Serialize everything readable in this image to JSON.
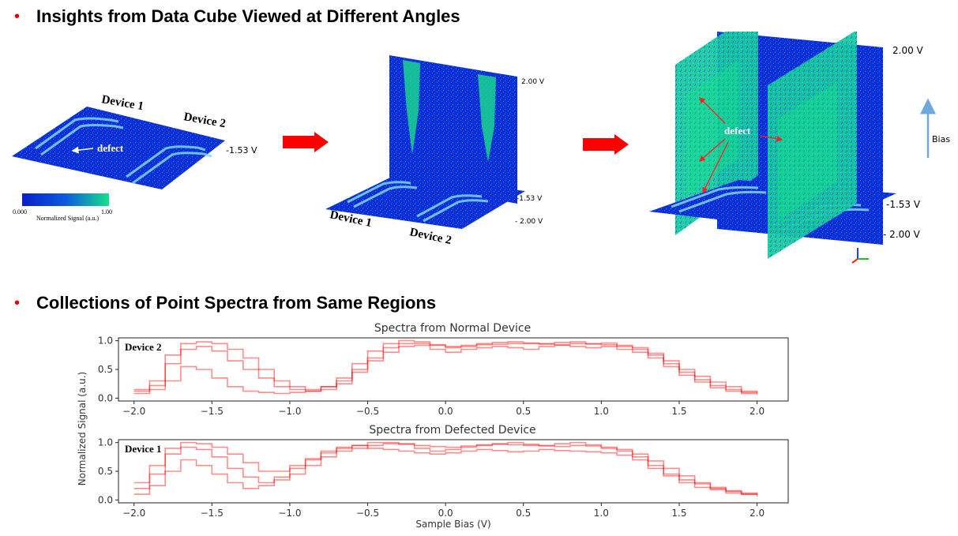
{
  "section1": {
    "bullet": "•",
    "title": "Insights from Data Cube Viewed at Different Angles"
  },
  "section2": {
    "bullet": "•",
    "title": "Collections of Point Spectra from Same Regions"
  },
  "colorbar": {
    "min": "0.000",
    "max": "1.00",
    "label": "Normalized Signal (a.u.)"
  },
  "cube1": {
    "device1": "Device 1",
    "device2": "Device 2",
    "defect": "defect",
    "bias": "-1.53 V"
  },
  "cube2": {
    "top_bias": "2.00 V",
    "mid_bias": "-1.53 V",
    "low_bias": "- 2.00 V",
    "device1": "Device 1",
    "device2": "Device 2"
  },
  "cube3": {
    "top_bias": "2.00 V",
    "mid_bias": "-1.53 V",
    "low_bias": "- 2.00 V",
    "defect": "defect",
    "axis_arrow": "Bias"
  },
  "colors": {
    "accent_red": "#e00000",
    "cube_blue": "#0b2fd6",
    "cube_green": "#19e08a",
    "arrow_blue": "#6fa8dc",
    "spectra_red": "#ff0000"
  },
  "chart_data": [
    {
      "type": "line",
      "title": "Spectra from Normal Device",
      "label": "Device 2",
      "xlabel": "",
      "ylabel": "Normalized Signal (a.u.)",
      "xlim": [
        -2.1,
        2.2
      ],
      "ylim": [
        -0.05,
        1.05
      ],
      "xticks": [
        "−2.0",
        "−1.5",
        "−1.0",
        "−0.5",
        "0.0",
        "0.5",
        "1.0",
        "1.5",
        "2.0"
      ],
      "yticks": [
        "0.0",
        "0.5",
        "1.0"
      ],
      "x": [
        -2.0,
        -1.9,
        -1.8,
        -1.7,
        -1.6,
        -1.5,
        -1.4,
        -1.3,
        -1.2,
        -1.1,
        -1.0,
        -0.9,
        -0.8,
        -0.7,
        -0.6,
        -0.5,
        -0.4,
        -0.3,
        -0.2,
        -0.1,
        0.0,
        0.1,
        0.2,
        0.3,
        0.4,
        0.5,
        0.6,
        0.7,
        0.8,
        0.9,
        1.0,
        1.1,
        1.2,
        1.3,
        1.4,
        1.5,
        1.6,
        1.7,
        1.8,
        1.9,
        2.0
      ],
      "series": [
        {
          "values": [
            0.12,
            0.22,
            0.6,
            0.85,
            0.9,
            0.82,
            0.65,
            0.5,
            0.35,
            0.2,
            0.15,
            0.12,
            0.15,
            0.25,
            0.45,
            0.7,
            0.88,
            0.95,
            0.95,
            0.93,
            0.9,
            0.92,
            0.93,
            0.94,
            0.95,
            0.95,
            0.94,
            0.93,
            0.95,
            0.94,
            0.93,
            0.9,
            0.85,
            0.75,
            0.6,
            0.45,
            0.32,
            0.22,
            0.15,
            0.1,
            0.08
          ]
        },
        {
          "values": [
            0.08,
            0.15,
            0.3,
            0.55,
            0.5,
            0.35,
            0.2,
            0.12,
            0.1,
            0.08,
            0.1,
            0.12,
            0.2,
            0.35,
            0.6,
            0.82,
            0.95,
            1.0,
            0.98,
            0.92,
            0.88,
            0.9,
            0.95,
            0.97,
            0.98,
            0.96,
            0.95,
            0.97,
            0.98,
            0.95,
            0.96,
            0.92,
            0.88,
            0.78,
            0.65,
            0.5,
            0.38,
            0.28,
            0.2,
            0.12,
            0.1
          ]
        },
        {
          "values": [
            0.15,
            0.3,
            0.75,
            0.95,
            0.98,
            0.95,
            0.85,
            0.7,
            0.5,
            0.3,
            0.2,
            0.15,
            0.2,
            0.3,
            0.5,
            0.65,
            0.8,
            0.9,
            0.92,
            0.85,
            0.8,
            0.85,
            0.88,
            0.9,
            0.88,
            0.85,
            0.9,
            0.92,
            0.9,
            0.88,
            0.9,
            0.85,
            0.8,
            0.7,
            0.55,
            0.4,
            0.28,
            0.18,
            0.12,
            0.08,
            0.06
          ]
        }
      ]
    },
    {
      "type": "line",
      "title": "Spectra from Defected Device",
      "label": "Device 1",
      "xlabel": "Sample Bias (V)",
      "ylabel": "Normalized Signal (a.u.)",
      "xlim": [
        -2.1,
        2.2
      ],
      "ylim": [
        -0.05,
        1.05
      ],
      "xticks": [
        "−2.0",
        "−1.5",
        "−1.0",
        "−0.5",
        "0.0",
        "0.5",
        "1.0",
        "1.5",
        "2.0"
      ],
      "yticks": [
        "0.0",
        "0.5",
        "1.0"
      ],
      "x": [
        -2.0,
        -1.9,
        -1.8,
        -1.7,
        -1.6,
        -1.5,
        -1.4,
        -1.3,
        -1.2,
        -1.1,
        -1.0,
        -0.9,
        -0.8,
        -0.7,
        -0.6,
        -0.5,
        -0.4,
        -0.3,
        -0.2,
        -0.1,
        0.0,
        0.1,
        0.2,
        0.3,
        0.4,
        0.5,
        0.6,
        0.7,
        0.8,
        0.9,
        1.0,
        1.1,
        1.2,
        1.3,
        1.4,
        1.5,
        1.6,
        1.7,
        1.8,
        1.9,
        2.0
      ],
      "series": [
        {
          "values": [
            0.2,
            0.45,
            0.8,
            0.92,
            0.88,
            0.75,
            0.55,
            0.4,
            0.3,
            0.35,
            0.45,
            0.6,
            0.75,
            0.85,
            0.9,
            0.95,
            0.98,
            0.97,
            0.95,
            0.93,
            0.92,
            0.94,
            0.96,
            0.97,
            0.96,
            0.95,
            0.94,
            0.93,
            0.95,
            0.94,
            0.9,
            0.85,
            0.75,
            0.6,
            0.45,
            0.35,
            0.28,
            0.2,
            0.15,
            0.12,
            0.1
          ]
        },
        {
          "values": [
            0.1,
            0.25,
            0.5,
            0.7,
            0.6,
            0.45,
            0.3,
            0.2,
            0.25,
            0.4,
            0.55,
            0.7,
            0.82,
            0.9,
            0.95,
            1.0,
            1.0,
            0.98,
            0.9,
            0.85,
            0.88,
            0.92,
            0.95,
            0.98,
            1.0,
            0.97,
            0.95,
            0.98,
            1.0,
            0.96,
            0.92,
            0.88,
            0.8,
            0.68,
            0.55,
            0.42,
            0.3,
            0.22,
            0.16,
            0.1,
            0.08
          ]
        },
        {
          "values": [
            0.3,
            0.6,
            0.9,
            1.0,
            0.98,
            0.92,
            0.8,
            0.65,
            0.5,
            0.5,
            0.6,
            0.72,
            0.85,
            0.92,
            0.95,
            0.9,
            0.88,
            0.85,
            0.82,
            0.8,
            0.82,
            0.85,
            0.88,
            0.86,
            0.84,
            0.85,
            0.88,
            0.86,
            0.85,
            0.84,
            0.82,
            0.78,
            0.7,
            0.55,
            0.42,
            0.3,
            0.22,
            0.18,
            0.12,
            0.1,
            0.06
          ]
        }
      ]
    }
  ]
}
